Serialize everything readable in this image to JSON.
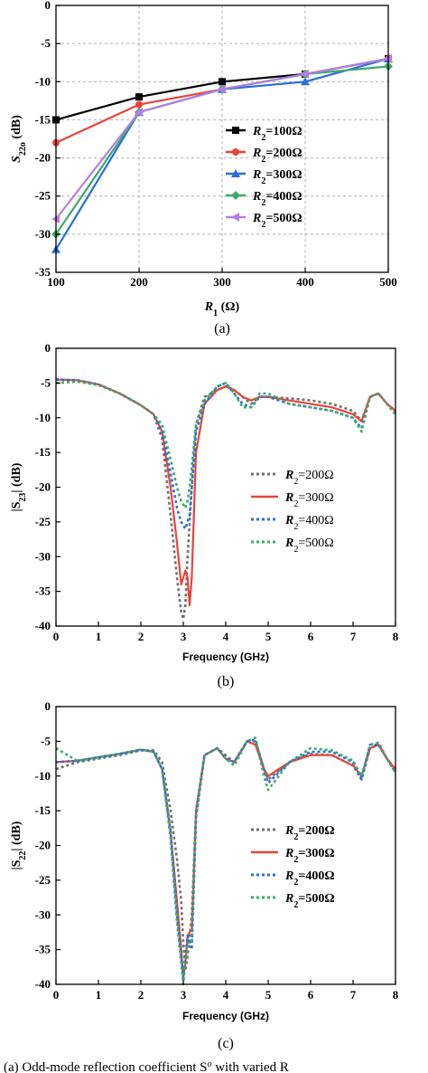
{
  "chart_data": [
    {
      "type": "line",
      "panel": "(a)",
      "xlabel": "R1 (Ω)",
      "xlabel_main": "R",
      "xlabel_sub": "1",
      "xlabel_unit": " (Ω)",
      "ylabel": "S22o (dB)",
      "ylabel_main": "S",
      "ylabel_sub": "22o",
      "ylabel_unit": " (dB)",
      "xlim": [
        100,
        500
      ],
      "ylim": [
        -35,
        0
      ],
      "xticks": [
        100,
        200,
        300,
        400,
        500
      ],
      "yticks": [
        0,
        -5,
        -10,
        -15,
        -20,
        -25,
        -30,
        -35
      ],
      "grid": true,
      "legend_position": "right-middle",
      "x": [
        100,
        200,
        300,
        400,
        500
      ],
      "series": [
        {
          "name": "R2=100Ω",
          "legend_sub": "2",
          "legend_value": "=100Ω",
          "color": "#000000",
          "marker": "square",
          "values": [
            -15,
            -12,
            -10,
            -9,
            -7
          ]
        },
        {
          "name": "R2=200Ω",
          "legend_sub": "2",
          "legend_value": "=200Ω",
          "color": "#e8443a",
          "marker": "circle",
          "values": [
            -18,
            -13,
            -11,
            -9,
            -7
          ]
        },
        {
          "name": "R2=300Ω",
          "legend_sub": "2",
          "legend_value": "=300Ω",
          "color": "#2a6fd6",
          "marker": "triangle",
          "values": [
            -32,
            -14,
            -11,
            -10,
            -7
          ]
        },
        {
          "name": "R2=400Ω",
          "legend_sub": "2",
          "legend_value": "=400Ω",
          "color": "#3caa6a",
          "marker": "diamond",
          "values": [
            -30,
            -14,
            -11,
            -9,
            -8
          ]
        },
        {
          "name": "R2=500Ω",
          "legend_sub": "2",
          "legend_value": "=500Ω",
          "color": "#b27fe6",
          "marker": "triangle-left",
          "values": [
            -28,
            -14,
            -11,
            -9,
            -7
          ]
        }
      ]
    },
    {
      "type": "line",
      "panel": "(b)",
      "xlabel": "Frequency (GHz)",
      "ylabel": "|S23| (dB)",
      "ylabel_main": "|S",
      "ylabel_sub": "23",
      "ylabel_unit": "| (dB)",
      "xlim": [
        0,
        8
      ],
      "ylim": [
        -40,
        0
      ],
      "xticks": [
        0,
        1,
        2,
        3,
        4,
        5,
        6,
        7,
        8
      ],
      "yticks": [
        0,
        -5,
        -10,
        -15,
        -20,
        -25,
        -30,
        -35,
        -40
      ],
      "grid": false,
      "legend_position": "right-middle",
      "series": [
        {
          "name": "R2=200Ω",
          "legend_sub": "2",
          "legend_value": "=200Ω",
          "color": "#707070",
          "dash": "3,3",
          "x": [
            0,
            0.5,
            1,
            1.5,
            2,
            2.3,
            2.5,
            2.7,
            2.85,
            2.95,
            3.0,
            3.05,
            3.1,
            3.2,
            3.3,
            3.5,
            3.8,
            4.0,
            4.2,
            4.4,
            4.6,
            4.8,
            5.0,
            5.5,
            6.0,
            6.5,
            7.0,
            7.2,
            7.4,
            7.6,
            7.8,
            8.0
          ],
          "values": [
            -4.5,
            -4.6,
            -5.2,
            -6.5,
            -8.2,
            -9.5,
            -13,
            -24,
            -33,
            -38,
            -39,
            -37,
            -30,
            -20,
            -11,
            -7,
            -6,
            -5.5,
            -6,
            -7,
            -8,
            -7,
            -7,
            -7.2,
            -7.5,
            -8,
            -9,
            -10.5,
            -7,
            -6.5,
            -8,
            -9
          ]
        },
        {
          "name": "R2=300Ω",
          "legend_sub": "2",
          "legend_value": "=300Ω",
          "color": "#e8443a",
          "dash": "",
          "x": [
            0,
            0.5,
            1,
            1.5,
            2,
            2.3,
            2.5,
            2.7,
            2.85,
            2.95,
            3.05,
            3.1,
            3.15,
            3.2,
            3.3,
            3.5,
            3.8,
            4.0,
            4.2,
            4.4,
            4.6,
            4.8,
            5.0,
            5.5,
            6.0,
            6.5,
            7.0,
            7.2,
            7.4,
            7.6,
            7.8,
            8.0
          ],
          "values": [
            -4.5,
            -4.6,
            -5.2,
            -6.5,
            -8.2,
            -9.5,
            -12,
            -20,
            -28,
            -34,
            -32,
            -33,
            -37,
            -33,
            -15,
            -8,
            -6,
            -5.5,
            -6,
            -7,
            -7.5,
            -7,
            -7,
            -7.5,
            -8,
            -8.5,
            -9.5,
            -10.5,
            -7,
            -6.5,
            -8,
            -9
          ]
        },
        {
          "name": "R2=400Ω",
          "legend_sub": "2",
          "legend_value": "=400Ω",
          "color": "#2a6fd6",
          "dash": "3,3",
          "x": [
            0,
            0.5,
            1,
            1.5,
            2,
            2.3,
            2.5,
            2.7,
            2.85,
            2.95,
            3.05,
            3.1,
            3.15,
            3.2,
            3.3,
            3.5,
            3.8,
            4.0,
            4.2,
            4.4,
            4.6,
            4.8,
            5.0,
            5.5,
            6.0,
            6.5,
            7.0,
            7.2,
            7.4,
            7.6,
            7.8,
            8.0
          ],
          "values": [
            -4.5,
            -4.6,
            -5.2,
            -6.5,
            -8.2,
            -9.5,
            -12,
            -18,
            -23,
            -25,
            -26,
            -25,
            -24,
            -20,
            -12,
            -8,
            -5.5,
            -5,
            -6.5,
            -8,
            -8.5,
            -7,
            -7,
            -8,
            -8.5,
            -9,
            -10,
            -11.5,
            -7,
            -6.5,
            -8,
            -9.5
          ]
        },
        {
          "name": "R2=500Ω",
          "legend_sub": "2",
          "legend_value": "=500Ω",
          "color": "#3caa6a",
          "dash": "3,3",
          "x": [
            0,
            0.5,
            1,
            1.5,
            2,
            2.3,
            2.5,
            2.7,
            2.85,
            2.95,
            3.05,
            3.1,
            3.15,
            3.2,
            3.3,
            3.5,
            3.8,
            4.0,
            4.2,
            4.4,
            4.6,
            4.8,
            5.0,
            5.5,
            6.0,
            6.5,
            7.0,
            7.2,
            7.4,
            7.6,
            7.8,
            8.0
          ],
          "values": [
            -5,
            -4.8,
            -5.3,
            -6.5,
            -8.2,
            -9.5,
            -11,
            -16,
            -20,
            -22,
            -23,
            -22,
            -20,
            -17,
            -11,
            -7.5,
            -5.5,
            -5,
            -6.5,
            -8.5,
            -8.5,
            -6.5,
            -6.5,
            -8,
            -8.5,
            -9,
            -10,
            -12,
            -7,
            -6.5,
            -8,
            -9.5
          ]
        }
      ]
    },
    {
      "type": "line",
      "panel": "(c)",
      "xlabel": "Frequency (GHz)",
      "ylabel": "|S22| (dB)",
      "ylabel_main": "|S",
      "ylabel_sub": "22",
      "ylabel_unit": "| (dB)",
      "xlim": [
        0,
        8
      ],
      "ylim": [
        -40,
        0
      ],
      "xticks": [
        0,
        1,
        2,
        3,
        4,
        5,
        6,
        7,
        8
      ],
      "yticks": [
        0,
        -5,
        -10,
        -15,
        -20,
        -25,
        -30,
        -35,
        -40
      ],
      "grid": false,
      "legend_position": "right-middle",
      "series": [
        {
          "name": "R2=200Ω",
          "legend_sub": "2",
          "legend_value": "=200Ω",
          "color": "#707070",
          "dash": "3,3",
          "x": [
            0,
            0.5,
            1,
            1.5,
            2,
            2.3,
            2.5,
            2.7,
            2.85,
            2.95,
            3.0,
            3.05,
            3.1,
            3.2,
            3.3,
            3.5,
            3.8,
            4.0,
            4.2,
            4.5,
            4.7,
            4.9,
            5.0,
            5.5,
            6.0,
            6.5,
            7.0,
            7.2,
            7.4,
            7.6,
            7.8,
            8.0
          ],
          "values": [
            -9,
            -8,
            -7.5,
            -7,
            -6.3,
            -6.3,
            -8,
            -15,
            -22,
            -28,
            -34,
            -38,
            -36,
            -30,
            -15,
            -7,
            -6,
            -7,
            -8,
            -5,
            -5,
            -9,
            -10.5,
            -8,
            -6.8,
            -7,
            -8.5,
            -10.5,
            -6,
            -5.5,
            -7.5,
            -9.5
          ]
        },
        {
          "name": "R2=300Ω",
          "legend_sub": "2",
          "legend_value": "=300Ω",
          "color": "#e8443a",
          "dash": "",
          "x": [
            0,
            0.5,
            1,
            1.5,
            2,
            2.3,
            2.5,
            2.7,
            2.85,
            2.95,
            3.0,
            3.05,
            3.1,
            3.2,
            3.3,
            3.5,
            3.8,
            4.0,
            4.2,
            4.5,
            4.7,
            4.9,
            5.0,
            5.5,
            6.0,
            6.5,
            7.0,
            7.2,
            7.4,
            7.6,
            7.8,
            8.0
          ],
          "values": [
            -8,
            -7.8,
            -7.3,
            -6.8,
            -6.2,
            -6.5,
            -9,
            -18,
            -28,
            -35,
            -39,
            -37,
            -33,
            -32,
            -15,
            -7,
            -6,
            -7.5,
            -8,
            -5,
            -5.5,
            -9,
            -10,
            -8,
            -7,
            -7,
            -8.5,
            -10,
            -6,
            -5.5,
            -7.5,
            -9
          ]
        },
        {
          "name": "R2=400Ω",
          "legend_sub": "2",
          "legend_value": "=400Ω",
          "color": "#2a6fd6",
          "dash": "3,3",
          "x": [
            0,
            0.5,
            1,
            1.5,
            2,
            2.3,
            2.5,
            2.7,
            2.85,
            2.95,
            3.0,
            3.05,
            3.1,
            3.2,
            3.3,
            3.5,
            3.8,
            4.0,
            4.2,
            4.5,
            4.7,
            4.9,
            5.0,
            5.5,
            6.0,
            6.5,
            7.0,
            7.2,
            7.4,
            7.6,
            7.8,
            8.0
          ],
          "values": [
            -8,
            -7.8,
            -7.3,
            -6.8,
            -6.2,
            -6.5,
            -9,
            -18,
            -30,
            -36,
            -39,
            -36,
            -33,
            -35,
            -16,
            -7,
            -6,
            -7.5,
            -8,
            -5,
            -4.8,
            -9,
            -11,
            -8,
            -6.5,
            -6.5,
            -8,
            -10.5,
            -5.5,
            -5.5,
            -7.5,
            -9.5
          ]
        },
        {
          "name": "R2=500Ω",
          "legend_sub": "2",
          "legend_value": "=500Ω",
          "color": "#3caa6a",
          "dash": "3,3",
          "x": [
            0,
            0.5,
            1,
            1.5,
            2,
            2.3,
            2.5,
            2.7,
            2.85,
            2.95,
            3.0,
            3.05,
            3.1,
            3.2,
            3.3,
            3.5,
            3.8,
            4.0,
            4.2,
            4.5,
            4.7,
            4.9,
            5.0,
            5.5,
            6.0,
            6.5,
            7.0,
            7.2,
            7.4,
            7.6,
            7.8,
            8.0
          ],
          "values": [
            -6,
            -7.8,
            -7.3,
            -6.8,
            -6.2,
            -6.5,
            -9,
            -19,
            -31,
            -37,
            -40,
            -37,
            -34,
            -34,
            -16,
            -7,
            -6,
            -7.5,
            -8.5,
            -5,
            -4.5,
            -10,
            -12,
            -8,
            -6,
            -6.3,
            -7.8,
            -10,
            -5.5,
            -5.2,
            -7.5,
            -9.5
          ]
        }
      ]
    }
  ],
  "captions": {
    "a": "(a)",
    "b": "(b)",
    "c": "(c)",
    "bottom_partial": "(a) Odd-mode reflection coefficient S",
    "bottom_partial_sup": "o",
    "bottom_partial_rest": " with varied R"
  }
}
